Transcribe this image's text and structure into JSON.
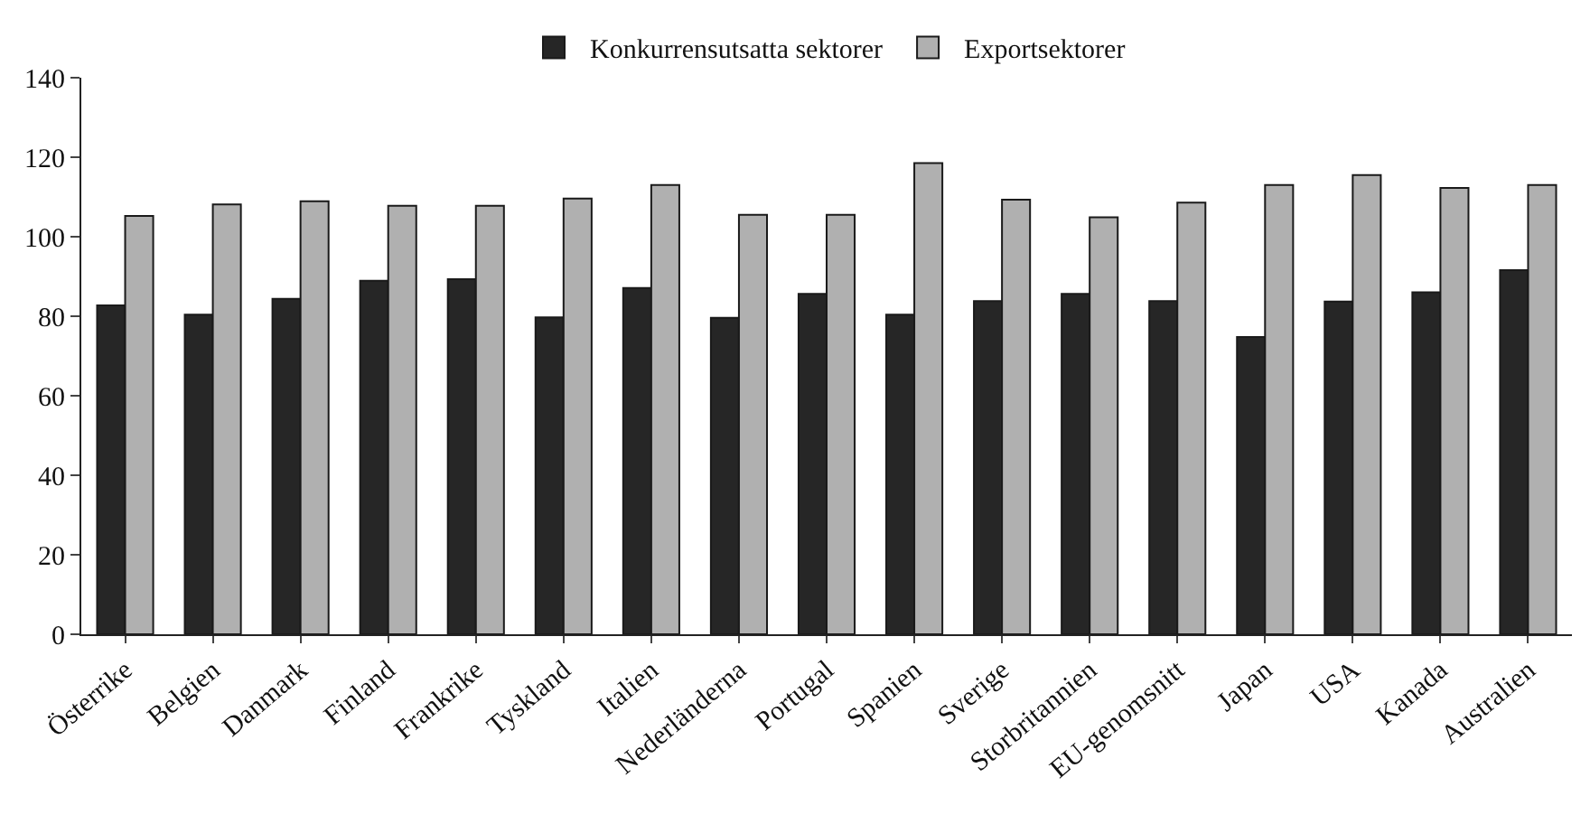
{
  "chart_data": {
    "type": "bar",
    "categories": [
      "Österrike",
      "Belgien",
      "Danmark",
      "Finland",
      "Frankrike",
      "Tyskland",
      "Italien",
      "Nederländerna",
      "Portugal",
      "Spanien",
      "Sverige",
      "Storbritannien",
      "EU-genomsnitt",
      "Japan",
      "USA",
      "Kanada",
      "Australien"
    ],
    "series": [
      {
        "name": "Konkurrensutsatta sektorer",
        "color": "#262626",
        "values": [
          82.7,
          80.4,
          84.4,
          88.9,
          89.3,
          79.7,
          87.1,
          79.6,
          85.6,
          80.4,
          83.8,
          85.6,
          83.8,
          74.8,
          83.7,
          86,
          91.6
        ]
      },
      {
        "name": "Exportsektorer",
        "color": "#b0b0b0",
        "values": [
          105.2,
          108.1,
          108.9,
          107.8,
          107.8,
          109.6,
          113,
          105.5,
          105.5,
          118.5,
          109.3,
          104.9,
          108.6,
          113,
          115.5,
          112.3,
          113
        ]
      }
    ],
    "ylim": [
      0,
      140
    ],
    "yticks": [
      0,
      20,
      40,
      60,
      80,
      100,
      120,
      140
    ],
    "grid": false,
    "legend": "top"
  }
}
